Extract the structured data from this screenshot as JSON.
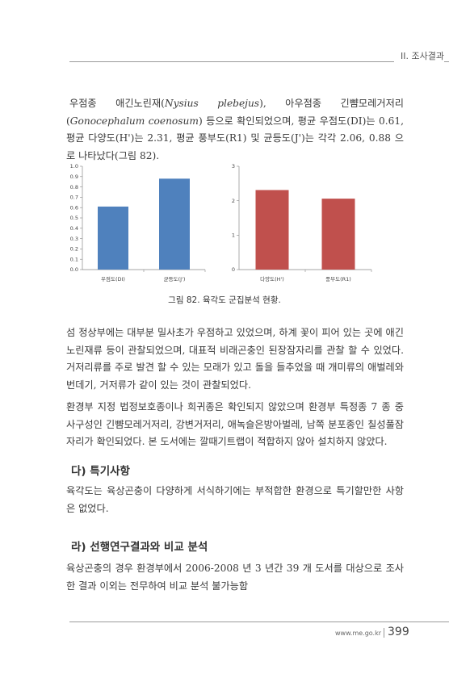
{
  "header": {
    "section_label": "II. 조사결과"
  },
  "paragraphs": {
    "p1_a": "우점종 애긴노린재(",
    "p1_species1": "Nysius plebejus",
    "p1_b": "), 아우점종 긴뺨모레거저리(",
    "p1_species2": "Gonocephalum coenosum",
    "p1_c": ") 등으로 확인되었으며, 평균 우점도(DI)는 0.61, 평균 다양도(H')는 2.31, 평균 풍부도(R1) 및 균등도(J')는 각각 2.06, 0.88 으로 나타났다(그림 82).",
    "p2": "섬 정상부에는 대부분 밀사초가 우점하고 있었으며, 하계 꽃이 피어 있는 곳에 애긴노린재류 등이 관찰되었으며, 대표적 비래곤충인 된장잠자리를 관찰 할 수 있었다. 거저리류를 주로 발견 할 수 있는 모래가 있고 돌을 들추었을 때 개미류의 애벌레와 번데기, 거저류가 같이 있는 것이 관찰되었다.",
    "p3": "환경부 지정 법정보호종이나 희귀종은 확인되지 않았으며 환경부 특정종 7 종 중 사구성인 긴뺨모레거저리, 강변거저리, 애녹슬은방아벌레, 남쪽 분포종인 칠성풀잠자리가 확인되었다. 본 도서에는 깔때기트랩이 적합하지 않아 설치하지 않았다.",
    "p4": "육각도는 육상곤충이 다양하게 서식하기에는 부적합한 환경으로 특기할만한 사항은 없었다.",
    "p5": "육상곤충의 경우 환경부에서 2006-2008 년 3 년간 39 개 도서를 대상으로 조사한 결과 이외는 전무하여 비교 분석 불가능함"
  },
  "sections": {
    "special": "다) 특기사항",
    "previous": "라) 선행연구결과와 비교 분석"
  },
  "caption": "그림 82. 육각도 군집분석 현황.",
  "footer": {
    "url": "www.me.go.kr",
    "page": "399"
  },
  "chart_data": [
    {
      "type": "bar",
      "categories": [
        "우점도(DI)",
        "균등도(J')"
      ],
      "values": [
        0.61,
        0.88
      ],
      "ylim": [
        0,
        1.0
      ],
      "yticks": [
        "0.0",
        "0.1",
        "0.2",
        "0.3",
        "0.4",
        "0.5",
        "0.6",
        "0.7",
        "0.8",
        "0.9",
        "1.0"
      ],
      "color": "#4f81bd"
    },
    {
      "type": "bar",
      "categories": [
        "다양도(H')",
        "풍부도(R1)"
      ],
      "values": [
        2.31,
        2.06
      ],
      "ylim": [
        0,
        3
      ],
      "yticks": [
        "0",
        "1",
        "2",
        "3"
      ],
      "color": "#c0504d"
    }
  ]
}
